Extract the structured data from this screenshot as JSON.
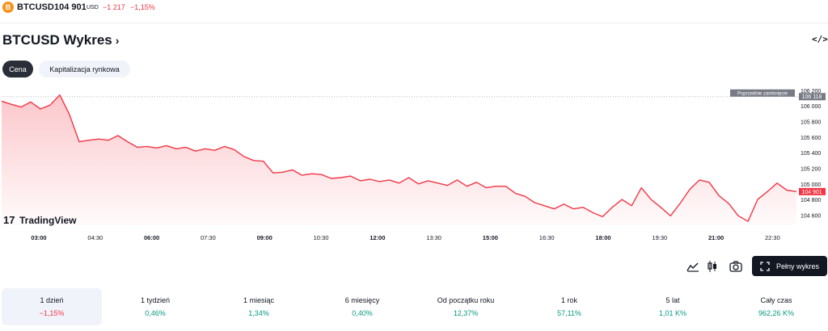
{
  "header": {
    "coin_letter": "B",
    "symbol": "BTCUSD",
    "price": "104 901",
    "currency": "USD",
    "change": "−1 217",
    "change_pct": "−1,15%"
  },
  "title": {
    "text": "BTCUSD Wykres",
    "chevron": "›",
    "embed_icon": "</>"
  },
  "tabs": [
    "Cena",
    "Kapitalizacja rynkowa"
  ],
  "chart_data": {
    "type": "area",
    "x_ticks": [
      "03:00",
      "04:30",
      "06:00",
      "07:30",
      "09:00",
      "10:30",
      "12:00",
      "13:30",
      "15:00",
      "16:30",
      "18:00",
      "19:30",
      "21:00",
      "22:30"
    ],
    "y_ticks": [
      "106 200",
      "106 000",
      "105 800",
      "105 600",
      "105 400",
      "105 200",
      "105 000",
      "104 800",
      "104 600"
    ],
    "ylim": [
      104470,
      106260
    ],
    "prev_close": {
      "label": "Poprzednie zamknięcie",
      "value": 106118,
      "value_label": "106 118"
    },
    "last": {
      "value": 104901,
      "value_label": "104 901"
    },
    "line_color": "#f23645",
    "series": [
      {
        "values": [
          106060,
          106020,
          105985,
          106050,
          105960,
          106010,
          106140,
          105890,
          105540,
          105560,
          105575,
          105560,
          105620,
          105540,
          105470,
          105480,
          105460,
          105490,
          105450,
          105470,
          105420,
          105450,
          105430,
          105480,
          105440,
          105350,
          105300,
          105290,
          105140,
          105150,
          105180,
          105110,
          105130,
          105120,
          105070,
          105080,
          105100,
          105040,
          105060,
          105030,
          105050,
          105010,
          105080,
          105000,
          105040,
          105010,
          104980,
          105050,
          104970,
          105020,
          104950,
          104970,
          104970,
          104880,
          104840,
          104760,
          104720,
          104680,
          104740,
          104680,
          104700,
          104630,
          104580,
          104700,
          104800,
          104720,
          104950,
          104800,
          104700,
          104590,
          104750,
          104930,
          105050,
          105020,
          104850,
          104750,
          104590,
          104520,
          104800,
          104900,
          105010,
          104920,
          104901
        ]
      }
    ],
    "watermark": "TradingView"
  },
  "controls": {
    "area_icon": "area-chart-icon",
    "candles_icon": "candlestick-icon",
    "camera_icon": "camera-icon",
    "full_chart_label": "Pełny wykres"
  },
  "periods": [
    {
      "label": "1 dzień",
      "value": "−1,15%",
      "sign": "neg"
    },
    {
      "label": "1 tydzień",
      "value": "0,46%",
      "sign": "pos"
    },
    {
      "label": "1 miesiąc",
      "value": "1,34%",
      "sign": "pos"
    },
    {
      "label": "6 miesięcy",
      "value": "0,40%",
      "sign": "pos"
    },
    {
      "label": "Od początku roku",
      "value": "12,37%",
      "sign": "pos"
    },
    {
      "label": "1 rok",
      "value": "57,11%",
      "sign": "pos"
    },
    {
      "label": "5 lat",
      "value": "1,01 K%",
      "sign": "pos"
    },
    {
      "label": "Cały czas",
      "value": "962,26 K%",
      "sign": "pos"
    }
  ]
}
